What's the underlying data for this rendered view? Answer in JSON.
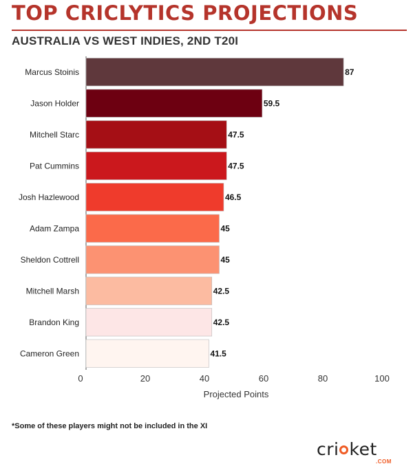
{
  "header": {
    "title": "TOP CRICLYTICS PROJECTIONS",
    "subtitle": "AUSTRALIA VS WEST INDIES, 2ND T20I"
  },
  "colors": {
    "title": "#b5342b",
    "rule": "#b5342b",
    "bar_border": "#bbbbbb"
  },
  "chart_data": {
    "type": "bar",
    "orientation": "horizontal",
    "categories": [
      "Marcus Stoinis",
      "Jason Holder",
      "Mitchell Starc",
      "Pat Cummins",
      "Josh Hazlewood",
      "Adam Zampa",
      "Sheldon Cottrell",
      "Mitchell Marsh",
      "Brandon King",
      "Cameron Green"
    ],
    "values": [
      87,
      59.5,
      47.5,
      47.5,
      46.5,
      45,
      45,
      42.5,
      42.5,
      41.5
    ],
    "value_labels": [
      "87",
      "59.5",
      "47.5",
      "47.5",
      "46.5",
      "45",
      "45",
      "42.5",
      "42.5",
      "41.5"
    ],
    "bar_colors": [
      "#5f383c",
      "#6d0011",
      "#a50f15",
      "#cb181d",
      "#ef3b2c",
      "#fb6a4a",
      "#fc9272",
      "#fcbba1",
      "#fde6e6",
      "#fff5f0"
    ],
    "xlabel": "Projected Points",
    "ylabel": "",
    "xlim": [
      0,
      100
    ],
    "xticks": [
      0,
      20,
      40,
      60,
      80,
      100
    ],
    "grid": false
  },
  "footnote": "*Some of these players might not be included in the XI",
  "logo": {
    "word_before": "cri",
    "word_after": "ket",
    "sub": ".COM"
  }
}
